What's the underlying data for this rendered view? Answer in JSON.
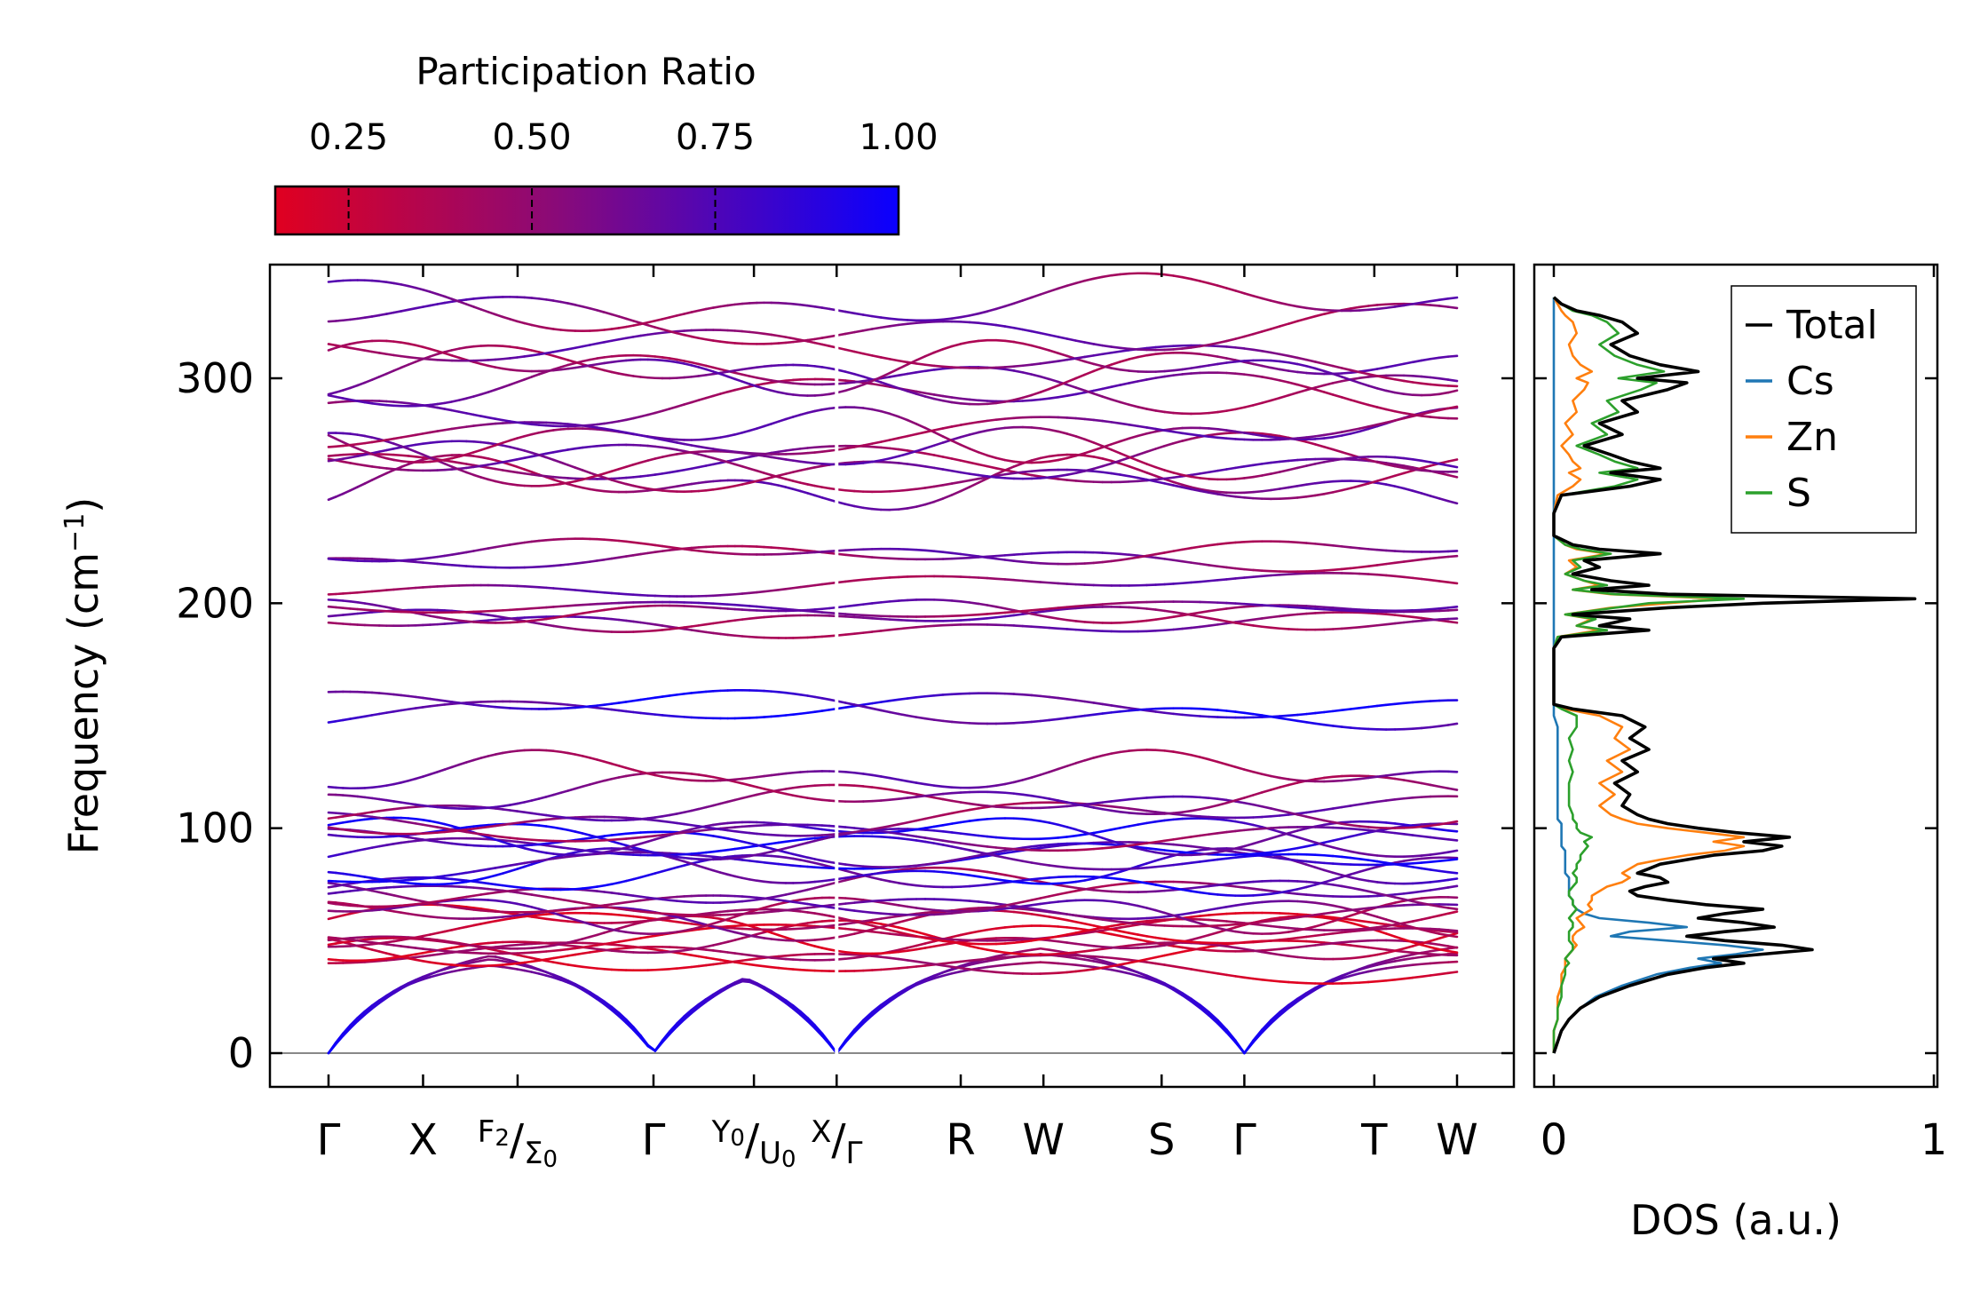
{
  "chart_data": [
    {
      "type": "line",
      "title": "",
      "ylabel": "Frequency (cm",
      "ylabel_sup": "−1",
      "ylabel_close": ")",
      "ylim": [
        -17,
        350
      ],
      "yticks": [
        0,
        100,
        200,
        300
      ],
      "kpath": [
        {
          "label": "Γ",
          "pos": 0.0
        },
        {
          "label": "X",
          "pos": 0.8
        },
        {
          "label": "F",
          "sub": "2",
          "label2": "Σ",
          "sub2": "0",
          "pos": 1.6
        },
        {
          "label": "Γ",
          "pos": 2.75
        },
        {
          "label": "Y",
          "sub": "0",
          "label2": "U",
          "sub2": "0",
          "pos": 3.6
        },
        {
          "label": "X",
          "label2": "Γ",
          "pos": 4.3
        },
        {
          "label": "R",
          "pos": 5.35
        },
        {
          "label": "W",
          "pos": 6.05
        },
        {
          "label": "S",
          "pos": 7.05
        },
        {
          "label": "Γ",
          "pos": 7.75
        },
        {
          "label": "T",
          "pos": 8.85
        },
        {
          "label": "W",
          "pos": 9.55
        }
      ],
      "segment_break": 4.3,
      "zero_line": 0,
      "colorbar": {
        "label": "Participation Ratio",
        "min": 0.15,
        "max": 1.0,
        "ticks": [
          "0.25",
          "0.50",
          "0.75",
          "1.00"
        ],
        "tick_values": [
          0.25,
          0.5,
          0.75,
          1.0
        ],
        "colors": [
          "#e00020",
          "#8a0a78",
          "#0a00ff"
        ]
      },
      "bands_approx": {
        "acoustic_max": 50,
        "low_flat": [
          40,
          44,
          47,
          49,
          51,
          53,
          55,
          58,
          60,
          63,
          66,
          70,
          73,
          78,
          81,
          84,
          88,
          92,
          96,
          98,
          100,
          105,
          110,
          115,
          125,
          150,
          153
        ],
        "mid": [
          190,
          193,
          197,
          200,
          208,
          220,
          223
        ],
        "high": [
          253,
          256,
          259,
          262,
          265,
          275,
          280,
          290,
          298,
          302,
          305,
          308,
          325,
          333
        ]
      }
    },
    {
      "type": "line",
      "xlabel": "DOS (a.u.)",
      "xlim": [
        0,
        1
      ],
      "xticks": [
        "0",
        "1"
      ],
      "series": [
        {
          "name": "Total",
          "color": "#000000"
        },
        {
          "name": "Cs",
          "color": "#1f77b4"
        },
        {
          "name": "Zn",
          "color": "#ff7f0e"
        },
        {
          "name": "S",
          "color": "#2ca02c"
        }
      ],
      "profile_freq": [
        0,
        5,
        10,
        15,
        20,
        25,
        30,
        35,
        38,
        40,
        42,
        44,
        46,
        48,
        50,
        52,
        54,
        56,
        58,
        60,
        62,
        64,
        66,
        68,
        70,
        72,
        74,
        76,
        78,
        80,
        82,
        84,
        86,
        88,
        90,
        92,
        94,
        96,
        98,
        100,
        102,
        104,
        106,
        110,
        115,
        120,
        125,
        130,
        135,
        140,
        145,
        150,
        153,
        155,
        160,
        170,
        180,
        185,
        188,
        190,
        193,
        195,
        198,
        200,
        202,
        204,
        206,
        208,
        210,
        213,
        216,
        219,
        222,
        224,
        226,
        230,
        240,
        248,
        252,
        255,
        258,
        260,
        263,
        266,
        270,
        275,
        280,
        285,
        290,
        295,
        298,
        300,
        303,
        306,
        310,
        315,
        320,
        325,
        328,
        330,
        333,
        336
      ],
      "total": [
        0,
        0.01,
        0.02,
        0.04,
        0.07,
        0.12,
        0.2,
        0.3,
        0.4,
        0.5,
        0.42,
        0.55,
        0.68,
        0.6,
        0.45,
        0.35,
        0.45,
        0.58,
        0.5,
        0.38,
        0.45,
        0.55,
        0.4,
        0.3,
        0.22,
        0.2,
        0.24,
        0.3,
        0.28,
        0.22,
        0.25,
        0.28,
        0.35,
        0.42,
        0.55,
        0.6,
        0.5,
        0.62,
        0.48,
        0.38,
        0.3,
        0.25,
        0.22,
        0.18,
        0.2,
        0.16,
        0.22,
        0.18,
        0.25,
        0.2,
        0.24,
        0.18,
        0.05,
        0.0,
        0.0,
        0.0,
        0.0,
        0.02,
        0.25,
        0.12,
        0.2,
        0.05,
        0.3,
        0.55,
        0.95,
        0.3,
        0.1,
        0.25,
        0.15,
        0.05,
        0.12,
        0.08,
        0.28,
        0.12,
        0.05,
        0.0,
        0.0,
        0.02,
        0.2,
        0.28,
        0.15,
        0.28,
        0.2,
        0.15,
        0.08,
        0.18,
        0.12,
        0.22,
        0.18,
        0.3,
        0.35,
        0.22,
        0.38,
        0.28,
        0.2,
        0.15,
        0.22,
        0.18,
        0.12,
        0.06,
        0.02,
        0.0
      ],
      "cs": [
        0,
        0.01,
        0.02,
        0.04,
        0.07,
        0.11,
        0.18,
        0.27,
        0.36,
        0.44,
        0.38,
        0.48,
        0.55,
        0.45,
        0.3,
        0.15,
        0.2,
        0.35,
        0.25,
        0.12,
        0.08,
        0.06,
        0.05,
        0.05,
        0.04,
        0.04,
        0.04,
        0.04,
        0.04,
        0.03,
        0.03,
        0.03,
        0.03,
        0.03,
        0.03,
        0.02,
        0.02,
        0.02,
        0.02,
        0.02,
        0.02,
        0.01,
        0.01,
        0.01,
        0.01,
        0.01,
        0.01,
        0.01,
        0.01,
        0.01,
        0.01,
        0.0,
        0.0,
        0.0,
        0.0,
        0.0,
        0.0,
        0.0,
        0.0,
        0.0,
        0.0,
        0.0,
        0.0,
        0.0,
        0.0,
        0.0,
        0.0,
        0.0,
        0.0,
        0.0,
        0.0,
        0.0,
        0.0,
        0.0,
        0.0,
        0.0,
        0.0,
        0.0,
        0.0,
        0.0,
        0.0,
        0.0,
        0.0,
        0.0,
        0.0,
        0.0,
        0.0,
        0.0,
        0.0,
        0.0,
        0.0,
        0.0,
        0.0,
        0.0,
        0.0,
        0.0,
        0.0,
        0.0,
        0.0,
        0.0,
        0.0,
        0.0
      ],
      "zn": [
        0,
        0.0,
        0.0,
        0.01,
        0.01,
        0.01,
        0.02,
        0.02,
        0.03,
        0.03,
        0.03,
        0.04,
        0.05,
        0.06,
        0.05,
        0.05,
        0.06,
        0.08,
        0.07,
        0.06,
        0.08,
        0.1,
        0.09,
        0.1,
        0.1,
        0.12,
        0.14,
        0.18,
        0.2,
        0.18,
        0.2,
        0.22,
        0.28,
        0.35,
        0.45,
        0.5,
        0.42,
        0.5,
        0.4,
        0.3,
        0.22,
        0.18,
        0.15,
        0.12,
        0.16,
        0.12,
        0.18,
        0.14,
        0.2,
        0.16,
        0.18,
        0.12,
        0.03,
        0.0,
        0.0,
        0.0,
        0.0,
        0.01,
        0.12,
        0.06,
        0.1,
        0.03,
        0.15,
        0.3,
        0.45,
        0.15,
        0.05,
        0.12,
        0.08,
        0.03,
        0.06,
        0.04,
        0.14,
        0.06,
        0.03,
        0.0,
        0.0,
        0.01,
        0.05,
        0.07,
        0.04,
        0.07,
        0.05,
        0.04,
        0.02,
        0.05,
        0.03,
        0.06,
        0.05,
        0.08,
        0.09,
        0.06,
        0.1,
        0.07,
        0.05,
        0.04,
        0.06,
        0.05,
        0.03,
        0.02,
        0.01,
        0.0
      ],
      "s": [
        0,
        0.0,
        0.0,
        0.01,
        0.01,
        0.02,
        0.02,
        0.03,
        0.03,
        0.04,
        0.03,
        0.04,
        0.05,
        0.05,
        0.04,
        0.04,
        0.04,
        0.05,
        0.05,
        0.04,
        0.05,
        0.06,
        0.05,
        0.05,
        0.04,
        0.04,
        0.05,
        0.06,
        0.06,
        0.05,
        0.06,
        0.06,
        0.07,
        0.07,
        0.08,
        0.09,
        0.08,
        0.1,
        0.07,
        0.06,
        0.06,
        0.05,
        0.05,
        0.04,
        0.04,
        0.04,
        0.05,
        0.04,
        0.05,
        0.04,
        0.06,
        0.06,
        0.02,
        0.0,
        0.0,
        0.0,
        0.0,
        0.01,
        0.14,
        0.06,
        0.11,
        0.03,
        0.16,
        0.25,
        0.5,
        0.16,
        0.05,
        0.14,
        0.08,
        0.03,
        0.07,
        0.05,
        0.15,
        0.07,
        0.03,
        0.0,
        0.0,
        0.02,
        0.16,
        0.22,
        0.12,
        0.22,
        0.16,
        0.12,
        0.06,
        0.14,
        0.1,
        0.17,
        0.14,
        0.23,
        0.27,
        0.17,
        0.29,
        0.22,
        0.16,
        0.12,
        0.17,
        0.14,
        0.1,
        0.05,
        0.02,
        0.0
      ]
    }
  ]
}
